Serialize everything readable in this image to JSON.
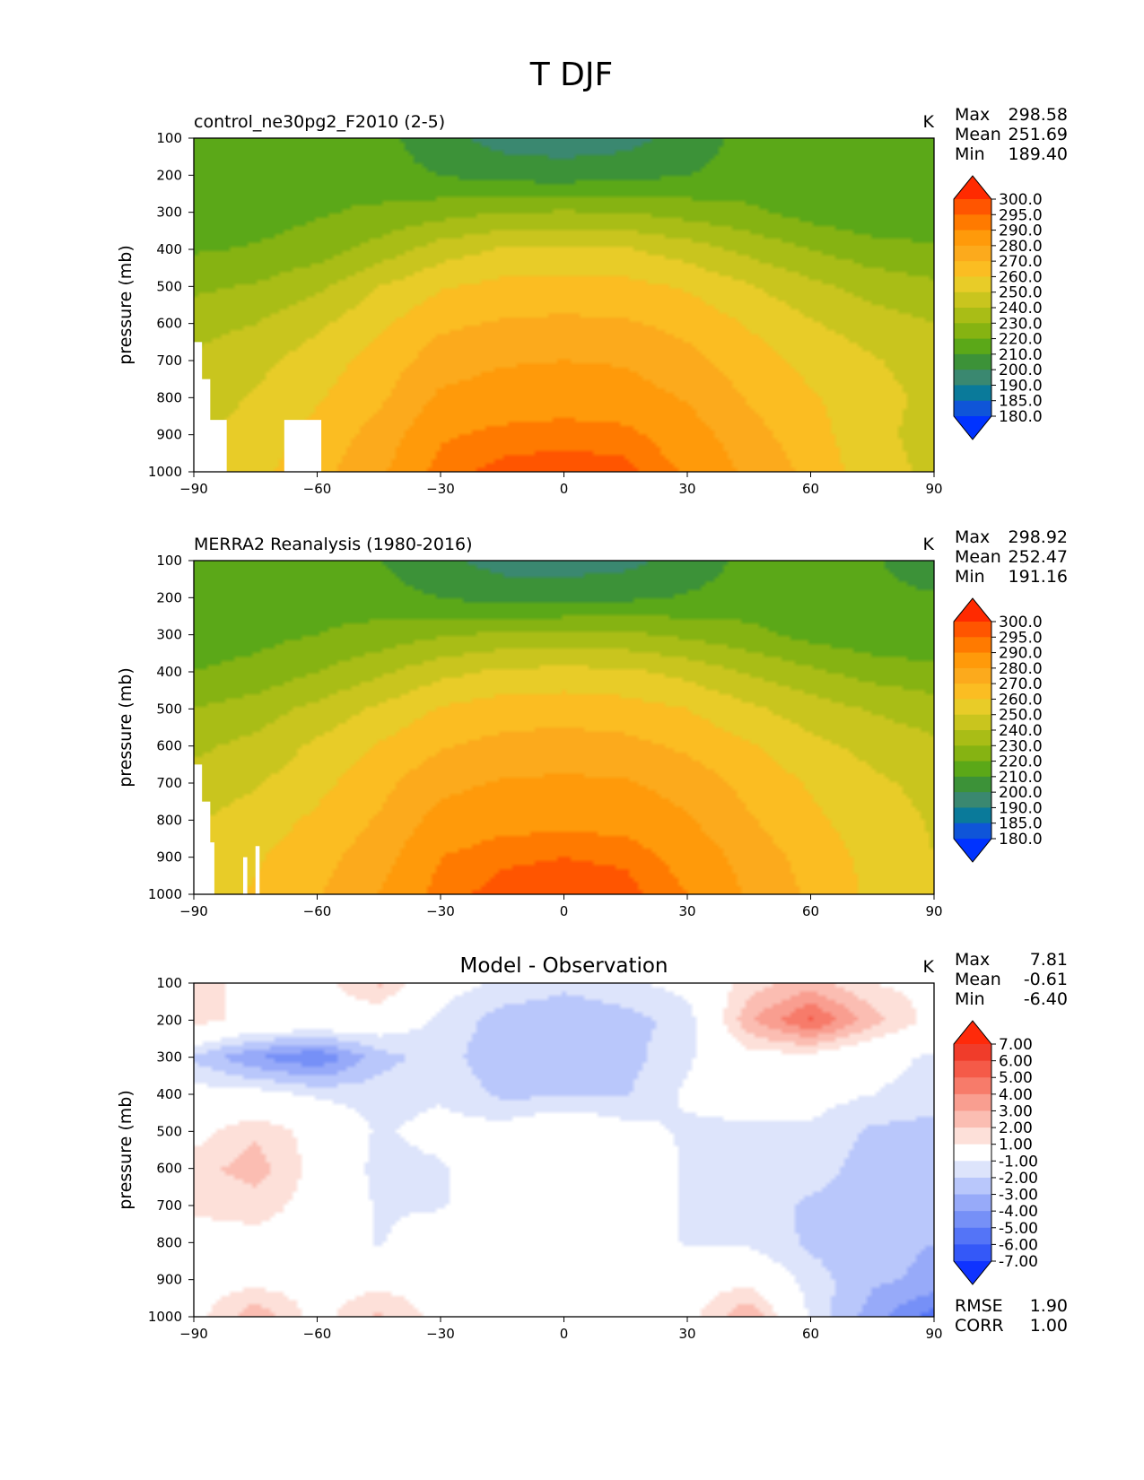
{
  "figure": {
    "title": "T DJF"
  },
  "chart_data": [
    {
      "type": "heatmap",
      "title": "control_ne30pg2_F2010 (2-5)",
      "units": "K",
      "ylabel": "pressure (mb)",
      "xticks": [
        "−90",
        "−60",
        "−30",
        "0",
        "30",
        "60",
        "90"
      ],
      "yticks": [
        "100",
        "200",
        "300",
        "400",
        "500",
        "600",
        "700",
        "800",
        "900",
        "1000"
      ],
      "xlim": [
        -90,
        90
      ],
      "ylim": [
        1000,
        100
      ],
      "stats": [
        {
          "label": "Max",
          "value": "298.58"
        },
        {
          "label": "Mean",
          "value": "251.69"
        },
        {
          "label": "Min",
          "value": "189.40"
        }
      ],
      "colorbar": {
        "levels": [
          "300.0",
          "295.0",
          "290.0",
          "280.0",
          "270.0",
          "260.0",
          "250.0",
          "240.0",
          "230.0",
          "220.0",
          "210.0",
          "200.0",
          "190.0",
          "185.0",
          "180.0"
        ],
        "colors": [
          "#ff2a00",
          "#ff5500",
          "#ff7a00",
          "#ff9a0a",
          "#fcaa1c",
          "#fbbd22",
          "#e8cc28",
          "#c9c51e",
          "#a9bd16",
          "#86b312",
          "#5ba818",
          "#3c9238",
          "#3a8870",
          "#0a7a9a",
          "#0f55d8",
          "#0033ff"
        ]
      },
      "field": {
        "lat": [
          -90,
          -75,
          -60,
          -45,
          -30,
          -15,
          0,
          15,
          30,
          45,
          60,
          75,
          90
        ],
        "lev": [
          100,
          200,
          300,
          400,
          500,
          600,
          700,
          800,
          900,
          1000
        ],
        "values": [
          [
            218,
            219,
            218,
            214,
            203,
            196,
            194,
            196,
            204,
            214,
            216,
            214,
            212
          ],
          [
            219,
            219,
            218,
            214,
            210,
            206,
            205,
            207,
            210,
            214,
            216,
            212,
            211
          ],
          [
            213,
            215,
            219,
            222,
            226,
            230,
            231,
            230,
            226,
            222,
            216,
            212,
            211
          ],
          [
            219,
            221,
            225,
            234,
            245,
            251,
            252,
            251,
            245,
            237,
            230,
            224,
            222
          ],
          [
            228,
            231,
            238,
            250,
            259,
            263,
            264,
            263,
            259,
            251,
            243,
            236,
            232
          ],
          [
            236,
            240,
            248,
            258,
            268,
            271,
            272,
            271,
            267,
            259,
            251,
            245,
            240
          ],
          [
            242,
            247,
            255,
            264,
            275,
            279,
            280,
            279,
            273,
            265,
            257,
            251,
            245
          ],
          [
            245,
            251,
            259,
            268,
            282,
            285,
            286,
            285,
            279,
            269,
            261,
            254,
            247
          ],
          [
            248,
            254,
            263,
            274,
            289,
            292,
            293,
            292,
            285,
            274,
            264,
            253,
            246
          ],
          [
            250,
            257,
            267,
            278,
            293,
            297,
            298,
            297,
            289,
            278,
            267,
            254,
            248
          ]
        ],
        "missing": [
          {
            "lat": [
              -90,
              -88
            ],
            "lev": [
              650,
              1000
            ]
          },
          {
            "lat": [
              -90,
              -86
            ],
            "lev": [
              750,
              1000
            ]
          },
          {
            "lat": [
              -90,
              -82
            ],
            "lev": [
              860,
              1000
            ]
          },
          {
            "lat": [
              -68,
              -59
            ],
            "lev": [
              860,
              1000
            ]
          }
        ]
      }
    },
    {
      "type": "heatmap",
      "title": "MERRA2 Reanalysis (1980-2016)",
      "units": "K",
      "ylabel": "pressure (mb)",
      "xticks": [
        "−90",
        "−60",
        "−30",
        "0",
        "30",
        "60",
        "90"
      ],
      "yticks": [
        "100",
        "200",
        "300",
        "400",
        "500",
        "600",
        "700",
        "800",
        "900",
        "1000"
      ],
      "xlim": [
        -90,
        90
      ],
      "ylim": [
        1000,
        100
      ],
      "stats": [
        {
          "label": "Max",
          "value": "298.92"
        },
        {
          "label": "Mean",
          "value": "252.47"
        },
        {
          "label": "Min",
          "value": "191.16"
        }
      ],
      "colorbar": {
        "levels": [
          "300.0",
          "295.0",
          "290.0",
          "280.0",
          "270.0",
          "260.0",
          "250.0",
          "240.0",
          "230.0",
          "220.0",
          "210.0",
          "200.0",
          "190.0",
          "185.0",
          "180.0"
        ],
        "colors": [
          "#ff2a00",
          "#ff5500",
          "#ff7a00",
          "#ff9a0a",
          "#fcaa1c",
          "#fbbd22",
          "#e8cc28",
          "#c9c51e",
          "#a9bd16",
          "#86b312",
          "#5ba818",
          "#3c9238",
          "#3a8870",
          "#0a7a9a",
          "#0f55d8",
          "#0033ff"
        ]
      },
      "field": {
        "lat": [
          -90,
          -75,
          -60,
          -45,
          -30,
          -15,
          0,
          15,
          30,
          45,
          60,
          75,
          90
        ],
        "lev": [
          100,
          200,
          300,
          400,
          500,
          600,
          700,
          800,
          900,
          1000
        ],
        "values": [
          [
            215,
            215,
            214,
            210,
            202,
            196,
            195,
            197,
            204,
            213,
            214,
            211,
            205
          ],
          [
            214,
            215,
            216,
            214,
            210,
            206,
            206,
            208,
            211,
            214,
            213,
            212,
            211
          ],
          [
            215,
            217,
            220,
            224,
            229,
            232,
            233,
            232,
            228,
            223,
            217,
            213,
            212
          ],
          [
            220,
            223,
            230,
            238,
            247,
            252,
            253,
            252,
            247,
            239,
            232,
            226,
            223
          ],
          [
            230,
            235,
            243,
            252,
            261,
            265,
            266,
            264,
            260,
            252,
            245,
            239,
            235
          ],
          [
            238,
            243,
            252,
            261,
            269,
            273,
            274,
            273,
            268,
            261,
            253,
            247,
            242
          ],
          [
            244,
            249,
            257,
            267,
            277,
            281,
            282,
            281,
            276,
            267,
            259,
            252,
            247
          ],
          [
            249,
            255,
            262,
            271,
            284,
            287,
            288,
            287,
            281,
            271,
            262,
            255,
            249
          ],
          [
            252,
            259,
            266,
            276,
            290,
            294,
            295,
            294,
            287,
            276,
            266,
            257,
            250
          ],
          [
            254,
            261,
            269,
            280,
            293,
            297,
            298,
            297,
            290,
            279,
            268,
            258,
            251
          ]
        ],
        "missing": [
          {
            "lat": [
              -90,
              -88
            ],
            "lev": [
              650,
              1000
            ]
          },
          {
            "lat": [
              -90,
              -86
            ],
            "lev": [
              750,
              1000
            ]
          },
          {
            "lat": [
              -90,
              -85
            ],
            "lev": [
              860,
              1000
            ]
          },
          {
            "lat": [
              -78,
              -77
            ],
            "lev": [
              900,
              1000
            ]
          },
          {
            "lat": [
              -75,
              -74
            ],
            "lev": [
              870,
              1000
            ]
          }
        ]
      }
    },
    {
      "type": "heatmap",
      "title": "Model - Observation",
      "units": "K",
      "ylabel": "pressure (mb)",
      "xticks": [
        "−90",
        "−60",
        "−30",
        "0",
        "30",
        "60",
        "90"
      ],
      "yticks": [
        "100",
        "200",
        "300",
        "400",
        "500",
        "600",
        "700",
        "800",
        "900",
        "1000"
      ],
      "xlim": [
        -90,
        90
      ],
      "ylim": [
        1000,
        100
      ],
      "stats": [
        {
          "label": "Max",
          "value": "7.81"
        },
        {
          "label": "Mean",
          "value": "-0.61"
        },
        {
          "label": "Min",
          "value": "-6.40"
        }
      ],
      "extra_stats": [
        {
          "label": "RMSE",
          "value": "1.90"
        },
        {
          "label": "CORR",
          "value": "1.00"
        }
      ],
      "colorbar": {
        "levels": [
          "7.00",
          "6.00",
          "5.00",
          "4.00",
          "3.00",
          "2.00",
          "1.00",
          "-1.00",
          "-2.00",
          "-3.00",
          "-4.00",
          "-5.00",
          "-6.00",
          "-7.00"
        ],
        "colors": [
          "#ff2a0a",
          "#f03c2a",
          "#f55a48",
          "#f77b6a",
          "#f99e90",
          "#fbbdb2",
          "#fde0d9",
          "#ffffff",
          "#dde4fb",
          "#b9c7fb",
          "#97aaf9",
          "#7690f7",
          "#5474f7",
          "#3458f8",
          "#0f33ff"
        ]
      },
      "field": {
        "lat": [
          -90,
          -75,
          -60,
          -45,
          -30,
          -15,
          0,
          15,
          30,
          45,
          60,
          75,
          90
        ],
        "lev": [
          100,
          200,
          300,
          400,
          500,
          600,
          700,
          800,
          900,
          1000
        ],
        "values": [
          [
            1.5,
            0.5,
            0.5,
            2.2,
            -0.5,
            -1.2,
            -1.8,
            -1.3,
            -0.5,
            1.5,
            2.5,
            1.0,
            0.5
          ],
          [
            1.5,
            0.5,
            0.5,
            0.0,
            -1.2,
            -2.5,
            -2.6,
            -2.4,
            -1.6,
            2.8,
            5.2,
            2.5,
            0.5
          ],
          [
            -2.2,
            -4.0,
            -5.0,
            -2.4,
            -1.5,
            -2.8,
            -2.6,
            -2.4,
            -1.2,
            0.5,
            0.5,
            -0.5,
            -1.2
          ],
          [
            -0.5,
            -0.5,
            -1.2,
            -1.5,
            -1.2,
            -2.2,
            -2.2,
            -2.1,
            -0.8,
            -0.5,
            -0.5,
            -1.0,
            -1.5
          ],
          [
            0.5,
            1.8,
            0.5,
            -1.2,
            -0.5,
            -0.5,
            0.5,
            -0.5,
            -1.2,
            -1.2,
            -1.2,
            -2.2,
            -2.4
          ],
          [
            1.6,
            2.5,
            0.5,
            -1.4,
            -1.2,
            0.5,
            0.5,
            0.5,
            -1.2,
            -1.2,
            -1.5,
            -2.5,
            -2.8
          ],
          [
            1.2,
            1.5,
            0.5,
            -1.2,
            -1.2,
            0.5,
            0.5,
            0.5,
            -1.2,
            -1.5,
            -2.2,
            -2.6,
            -2.8
          ],
          [
            0.5,
            0.5,
            0.5,
            -1.2,
            0.5,
            0.5,
            0.5,
            0.5,
            -1.2,
            -1.2,
            -2.2,
            -2.8,
            -3.0
          ],
          [
            0.5,
            0.5,
            0.5,
            0.5,
            0.5,
            0.5,
            0.5,
            0.5,
            0.5,
            0.5,
            -1.5,
            -2.8,
            -3.2
          ],
          [
            0.5,
            2.8,
            0.5,
            2.2,
            0.5,
            0.5,
            0.5,
            0.5,
            0.5,
            3.0,
            -1.2,
            -3.5,
            -5.5
          ]
        ],
        "missing": []
      }
    }
  ]
}
